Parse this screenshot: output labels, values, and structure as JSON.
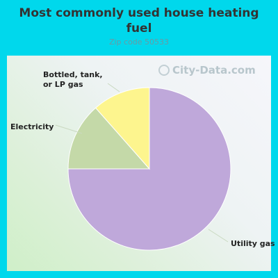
{
  "chart_data": {
    "type": "pie",
    "title": "Most commonly used house heating fuel",
    "subtitle": "Zip code 50533",
    "slices": [
      {
        "label": "Utility gas",
        "value": 75.0,
        "color": "#bfa8da"
      },
      {
        "label": "Electricity",
        "value": 13.5,
        "color": "#c4d9a8"
      },
      {
        "label": "Bottled, tank, or LP gas",
        "value": 11.5,
        "color": "#fdf58e"
      }
    ]
  },
  "watermark": "City-Data.com",
  "colors": {
    "background": "#00d8ec"
  }
}
